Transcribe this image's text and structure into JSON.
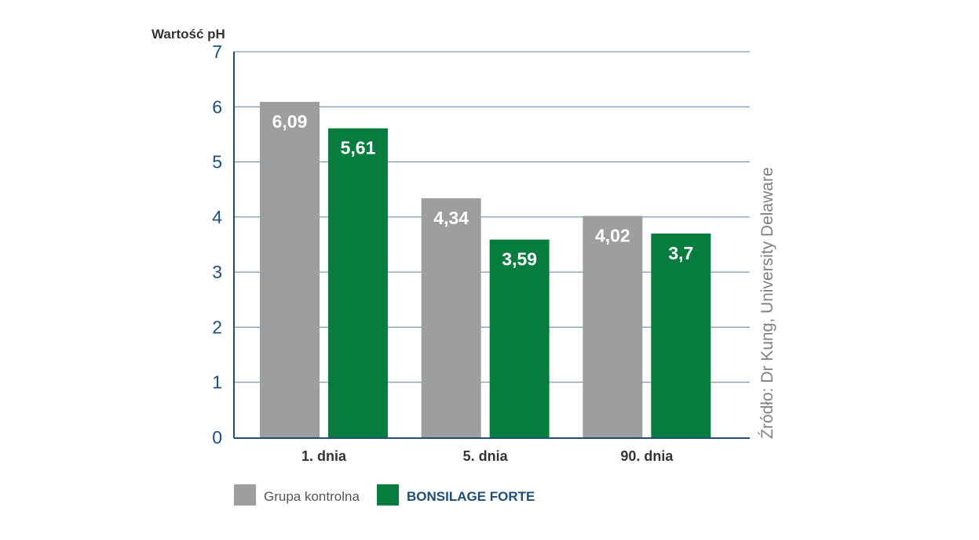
{
  "chart_data": {
    "type": "bar",
    "ylabel": "Wartość pH",
    "categories": [
      "1. dnia",
      "5. dnia",
      "90. dnia"
    ],
    "series": [
      {
        "name": "Grupa kontrolna",
        "values": [
          6.09,
          4.34,
          4.02
        ],
        "labels": [
          "6,09",
          "4,34",
          "4,02"
        ],
        "color": "#9e9e9e"
      },
      {
        "name": "BONSILAGE FORTE",
        "values": [
          5.61,
          3.59,
          3.7
        ],
        "labels": [
          "5,61",
          "3,59",
          "3,7"
        ],
        "color": "#067d3f"
      }
    ],
    "ylim": [
      0,
      7
    ],
    "yticks": [
      "0",
      "1",
      "2",
      "3",
      "4",
      "5",
      "6",
      "7"
    ],
    "grid": true,
    "legend_position": "bottom-left",
    "source_note": "Źródło: Dr Kung, University Delaware",
    "axis_color": "#1f4e79",
    "grid_color": "#5b7fa3"
  }
}
